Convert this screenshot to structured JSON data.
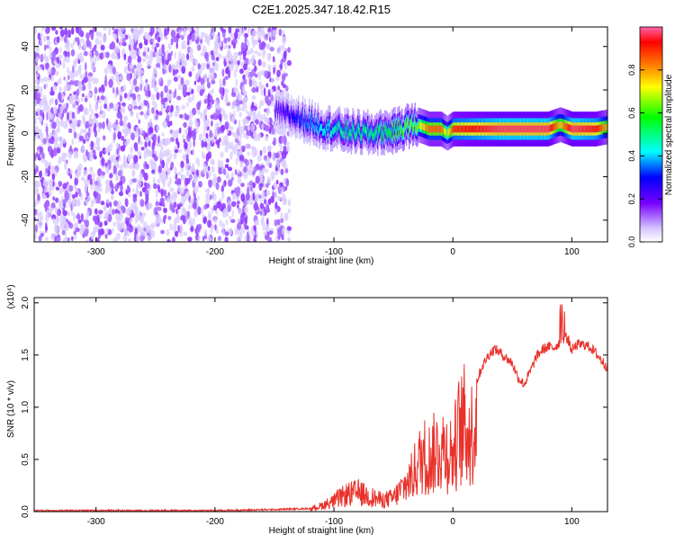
{
  "page": {
    "title": "C2E1.2025.347.18.42.R15"
  },
  "chart_data": [
    {
      "type": "heatmap",
      "title": "C2E1.2025.347.18.42.R15",
      "xlabel": "Height of straight line (km)",
      "ylabel": "Frequency (Hz)",
      "xlim": [
        -352,
        130
      ],
      "ylim": [
        -50,
        49
      ],
      "x_ticks": [
        -300,
        -200,
        -100,
        0,
        100
      ],
      "x_tick_labels": [
        "-300",
        "-200",
        "-100",
        "0",
        "100"
      ],
      "y_ticks": [
        -40,
        -20,
        0,
        20,
        40
      ],
      "y_tick_labels": [
        "-40",
        "-20",
        "0",
        "20",
        "40"
      ],
      "colorbar": {
        "label": "Normalized spectral amplitude",
        "range": [
          0,
          1
        ],
        "ticks": [
          0.0,
          0.2,
          0.4,
          0.6,
          0.8
        ],
        "tick_labels": [
          "0.0",
          "0.2",
          "0.4",
          "0.6",
          "0.8"
        ],
        "colormap": [
          "#ffffff",
          "#c8b4ff",
          "#7800ff",
          "#0000ff",
          "#00ffff",
          "#00ff00",
          "#ffff00",
          "#ff8000",
          "#ff0000",
          "#ff66aa"
        ]
      },
      "ridge": {
        "x": [
          -150,
          -130,
          -110,
          -90,
          -70,
          -50,
          -40,
          -30,
          -20,
          -10,
          -5,
          0,
          20,
          40,
          60,
          80,
          90,
          100,
          120,
          130
        ],
        "center_hz": [
          10,
          7,
          3,
          1,
          0,
          1,
          3,
          4,
          2,
          2,
          0,
          2,
          2,
          2,
          2,
          2,
          4,
          2,
          2,
          3
        ],
        "amplitude": [
          0.25,
          0.35,
          0.45,
          0.5,
          0.5,
          0.55,
          0.6,
          0.6,
          0.8,
          0.8,
          0.6,
          0.85,
          0.9,
          0.95,
          0.95,
          0.95,
          0.7,
          0.95,
          0.9,
          0.7
        ]
      },
      "noise_region": {
        "x_range": [
          -352,
          -145
        ],
        "amplitude": [
          0.1,
          0.3
        ]
      },
      "grid": false
    },
    {
      "type": "line",
      "xlabel": "Height of straight line (km)",
      "ylabel": "SNR (10 * v/v)",
      "y_multiplier": "(x10⁴)",
      "xlim": [
        -352,
        130
      ],
      "ylim": [
        0,
        2.05
      ],
      "x_ticks": [
        -300,
        -200,
        -100,
        0,
        100
      ],
      "x_tick_labels": [
        "-300",
        "-200",
        "-100",
        "0",
        "100"
      ],
      "y_ticks": [
        0,
        0.5,
        1.0,
        1.5,
        2.0
      ],
      "y_tick_labels": [
        "0.0",
        "0.5",
        "1.0",
        "1.5",
        "2.0"
      ],
      "color": "#e8312a",
      "series": [
        {
          "x": [
            -352,
            -300,
            -250,
            -200,
            -150,
            -120,
            -110,
            -100,
            -90,
            -80,
            -70,
            -60,
            -50,
            -40,
            -35,
            -30,
            -25,
            -20,
            -15,
            -10,
            -5,
            0,
            5,
            10,
            15,
            20,
            25,
            30,
            35,
            40,
            45,
            50,
            55,
            60,
            65,
            70,
            75,
            80,
            85,
            90,
            95,
            100,
            105,
            110,
            115,
            120,
            125,
            130
          ],
          "values": [
            0.01,
            0.01,
            0.01,
            0.01,
            0.02,
            0.03,
            0.08,
            0.14,
            0.22,
            0.25,
            0.2,
            0.15,
            0.18,
            0.35,
            0.45,
            0.6,
            0.75,
            0.7,
            0.78,
            0.85,
            0.8,
            0.75,
            1.05,
            1.15,
            1.0,
            1.25,
            1.4,
            1.5,
            1.56,
            1.52,
            1.47,
            1.42,
            1.28,
            1.22,
            1.34,
            1.48,
            1.55,
            1.58,
            1.57,
            1.62,
            1.68,
            1.55,
            1.6,
            1.6,
            1.58,
            1.52,
            1.45,
            1.38
          ]
        }
      ],
      "grid": false
    }
  ]
}
